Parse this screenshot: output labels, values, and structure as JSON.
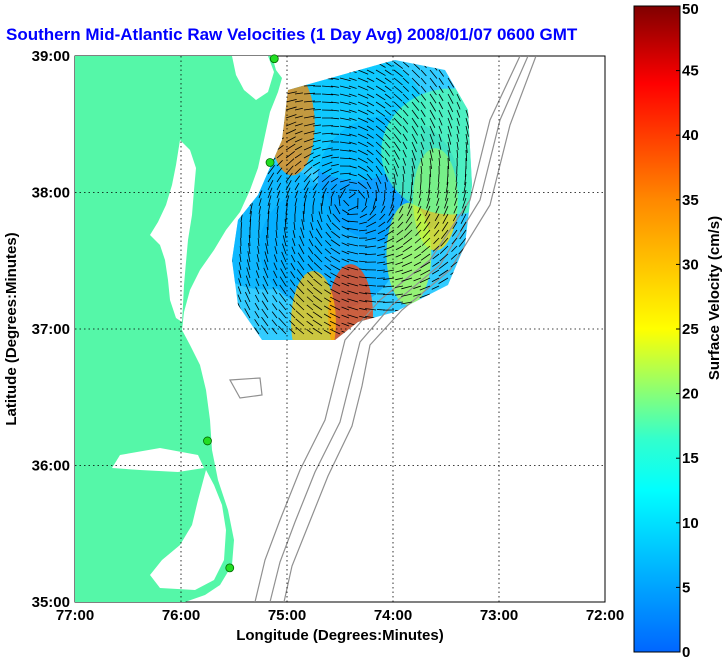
{
  "chart_data": {
    "type": "heatmap",
    "title": "Southern Mid-Atlantic Raw Velocities (1 Day Avg) 2008/01/07 0600 GMT",
    "xlabel": "Longitude (Degrees:Minutes)",
    "ylabel": "Latitude (Degrees:Minutes)",
    "x_ticks": [
      "77:00",
      "76:00",
      "75:00",
      "74:00",
      "73:00",
      "72:00"
    ],
    "y_ticks": [
      "35:00",
      "36:00",
      "37:00",
      "38:00",
      "39:00"
    ],
    "xlim": [
      -77,
      -72
    ],
    "ylim": [
      35,
      39
    ],
    "grid": true,
    "colorbar": {
      "label": "Surface Velocity (cm/s)",
      "ticks": [
        "0",
        "5",
        "10",
        "15",
        "20",
        "25",
        "30",
        "35",
        "40",
        "45",
        "50"
      ],
      "range": [
        0,
        50
      ]
    },
    "colors": {
      "land": "#55f7a8",
      "water": "#ffffff",
      "bathymetry": "#909090",
      "radar_site": "#22dd22",
      "vectors": "#000000"
    },
    "radar_sites": [
      {
        "lon": -75.12,
        "lat": 38.98
      },
      {
        "lon": -75.16,
        "lat": 38.22
      },
      {
        "lon": -75.75,
        "lat": 36.18
      },
      {
        "lon": -75.54,
        "lat": 35.25
      }
    ],
    "velocity_blobs": [
      {
        "lon": -74.05,
        "lat": 38.1,
        "speed": 3
      },
      {
        "lon": -74.6,
        "lat": 37.6,
        "speed": 5
      },
      {
        "lon": -75.2,
        "lat": 37.75,
        "speed": 6
      },
      {
        "lon": -74.35,
        "lat": 38.55,
        "speed": 8
      },
      {
        "lon": -73.6,
        "lat": 37.95,
        "speed": 28
      },
      {
        "lon": -73.85,
        "lat": 37.55,
        "speed": 22
      },
      {
        "lon": -74.4,
        "lat": 37.1,
        "speed": 40
      },
      {
        "lon": -74.75,
        "lat": 37.05,
        "speed": 30
      },
      {
        "lon": -74.95,
        "lat": 38.5,
        "speed": 35
      },
      {
        "lon": -73.45,
        "lat": 38.3,
        "speed": 18
      }
    ]
  }
}
